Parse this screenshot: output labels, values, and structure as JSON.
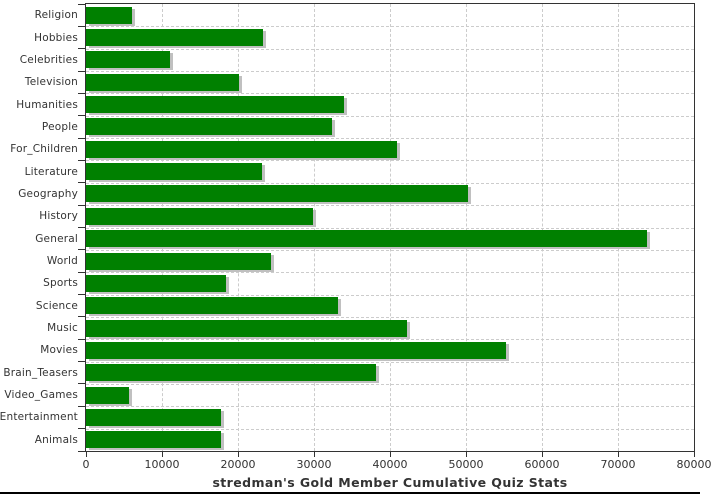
{
  "chart_data": {
    "type": "bar",
    "orientation": "horizontal",
    "title": "stredman's Gold Member Cumulative Quiz Stats",
    "categories": [
      "Religion",
      "Hobbies",
      "Celebrities",
      "Television",
      "Humanities",
      "People",
      "For_Children",
      "Literature",
      "Geography",
      "History",
      "General",
      "World",
      "Sports",
      "Science",
      "Music",
      "Movies",
      "Brain_Teasers",
      "Video_Games",
      "Entertainment",
      "Animals"
    ],
    "values": [
      6100,
      23300,
      11100,
      20100,
      34000,
      32400,
      40900,
      23100,
      50200,
      29900,
      73800,
      24400,
      18400,
      33200,
      42200,
      55200,
      38200,
      5700,
      17800,
      17700
    ],
    "xlim": [
      0,
      80000
    ],
    "x_ticks": [
      0,
      10000,
      20000,
      30000,
      40000,
      50000,
      60000,
      70000,
      80000
    ],
    "x_tick_labels": [
      "0",
      "10000",
      "20000",
      "30000",
      "40000",
      "50000",
      "60000",
      "70000",
      "80000"
    ],
    "grid": true,
    "legend_position": "none",
    "colors": {
      "bar": "#008000",
      "bar_shadow": "#c0c0c0",
      "gridline": "#cccccc",
      "plot_border": "#333333",
      "text": "#333333",
      "bottom_rule": "#000000",
      "background": "#ffffff"
    }
  }
}
